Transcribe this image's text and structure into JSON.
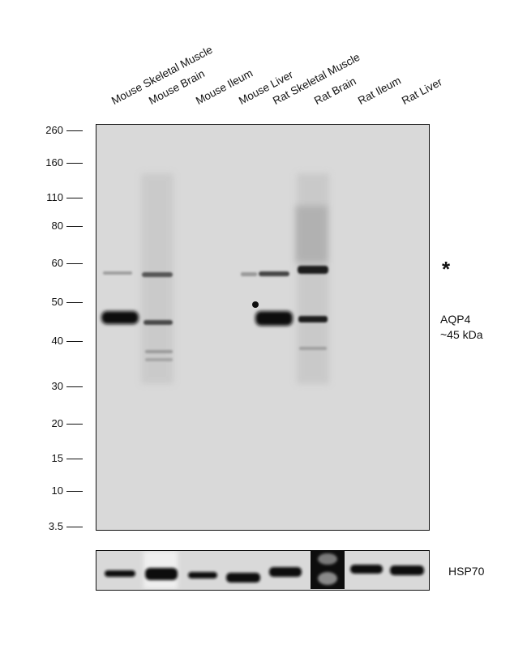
{
  "lanes": [
    "Mouse Skeletal Muscle",
    "Mouse Brain",
    "Mouse Ileum",
    "Mouse Liver",
    "Rat Skeletal Muscle",
    "Rat Brain",
    "Rat Ileum",
    "Rat Liver"
  ],
  "mw_markers": [
    "260",
    "160",
    "110",
    "80",
    "60",
    "50",
    "40",
    "30",
    "20",
    "15",
    "10",
    "3.5"
  ],
  "annotations": {
    "asterisk": "*",
    "target_line1": "AQP4",
    "target_line2": "~45 kDa",
    "loading_control": "HSP70"
  },
  "colors": {
    "membrane": "#d9d9d9",
    "band": "#0d0d0d"
  }
}
